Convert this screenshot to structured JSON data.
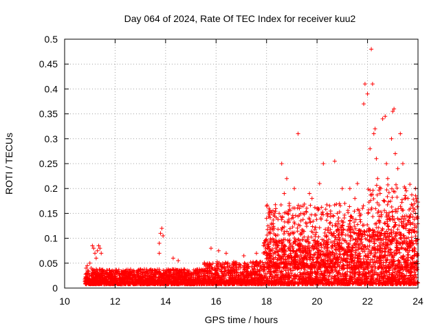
{
  "chart_data": {
    "type": "scatter",
    "title": "Day 064 of 2024, Rate Of TEC Index for receiver kuu2",
    "xlabel": "GPS time / hours",
    "ylabel": "ROTI / TECUs",
    "xlim": [
      10,
      24
    ],
    "ylim": [
      0,
      0.5
    ],
    "x_ticks": [
      "10",
      "12",
      "14",
      "16",
      "18",
      "20",
      "22",
      "24"
    ],
    "y_ticks": [
      "0",
      "0.05",
      "0.1",
      "0.15",
      "0.2",
      "0.25",
      "0.3",
      "0.35",
      "0.4",
      "0.45",
      "0.5"
    ],
    "x_tick_values": [
      10,
      12,
      14,
      16,
      18,
      20,
      22,
      24
    ],
    "y_tick_values": [
      0,
      0.05,
      0.1,
      0.15,
      0.2,
      0.25,
      0.3,
      0.35,
      0.4,
      0.45,
      0.5
    ],
    "grid": true,
    "marker": "plus",
    "color": "#ff0000",
    "series": [
      {
        "points": [
          [
            10.85,
            0.04
          ],
          [
            10.9,
            0.045
          ],
          [
            10.95,
            0.03
          ],
          [
            11.0,
            0.05
          ],
          [
            11.05,
            0.04
          ],
          [
            11.1,
            0.085
          ],
          [
            11.15,
            0.08
          ],
          [
            11.2,
            0.07
          ],
          [
            11.25,
            0.06
          ],
          [
            11.3,
            0.075
          ],
          [
            11.35,
            0.085
          ],
          [
            11.4,
            0.08
          ],
          [
            11.45,
            0.07
          ],
          [
            13.75,
            0.09
          ],
          [
            13.8,
            0.11
          ],
          [
            13.85,
            0.12
          ],
          [
            13.9,
            0.105
          ],
          [
            13.75,
            0.07
          ],
          [
            14.3,
            0.06
          ],
          [
            14.5,
            0.055
          ],
          [
            15.8,
            0.08
          ],
          [
            16.1,
            0.075
          ],
          [
            16.4,
            0.07
          ],
          [
            17.1,
            0.065
          ],
          [
            17.6,
            0.07
          ],
          [
            17.9,
            0.09
          ],
          [
            18.0,
            0.14
          ],
          [
            18.1,
            0.16
          ],
          [
            18.2,
            0.13
          ],
          [
            18.3,
            0.12
          ],
          [
            18.5,
            0.15
          ],
          [
            18.6,
            0.25
          ],
          [
            18.7,
            0.19
          ],
          [
            18.8,
            0.22
          ],
          [
            18.9,
            0.17
          ],
          [
            19.0,
            0.14
          ],
          [
            19.1,
            0.2
          ],
          [
            19.25,
            0.31
          ],
          [
            19.3,
            0.16
          ],
          [
            19.45,
            0.15
          ],
          [
            19.6,
            0.13
          ],
          [
            19.7,
            0.19
          ],
          [
            19.8,
            0.18
          ],
          [
            20.0,
            0.16
          ],
          [
            20.1,
            0.21
          ],
          [
            20.25,
            0.25
          ],
          [
            20.4,
            0.15
          ],
          [
            20.5,
            0.13
          ],
          [
            20.7,
            0.255
          ],
          [
            20.8,
            0.15
          ],
          [
            21.0,
            0.2
          ],
          [
            21.1,
            0.17
          ],
          [
            21.3,
            0.2
          ],
          [
            21.5,
            0.18
          ],
          [
            21.6,
            0.21
          ],
          [
            21.8,
            0.16
          ],
          [
            21.85,
            0.37
          ],
          [
            21.9,
            0.41
          ],
          [
            22.0,
            0.39
          ],
          [
            22.1,
            0.28
          ],
          [
            22.15,
            0.48
          ],
          [
            22.2,
            0.41
          ],
          [
            22.25,
            0.31
          ],
          [
            22.3,
            0.32
          ],
          [
            22.35,
            0.26
          ],
          [
            22.4,
            0.22
          ],
          [
            22.5,
            0.19
          ],
          [
            22.6,
            0.34
          ],
          [
            22.7,
            0.345
          ],
          [
            22.75,
            0.25
          ],
          [
            22.8,
            0.22
          ],
          [
            22.95,
            0.3
          ],
          [
            23.0,
            0.355
          ],
          [
            23.05,
            0.36
          ],
          [
            23.1,
            0.27
          ],
          [
            23.2,
            0.24
          ],
          [
            23.3,
            0.31
          ],
          [
            23.4,
            0.25
          ],
          [
            23.5,
            0.2
          ],
          [
            23.6,
            0.18
          ],
          [
            23.7,
            0.16
          ],
          [
            23.8,
            0.13
          ],
          [
            23.9,
            0.15
          ],
          [
            23.95,
            0.18
          ],
          [
            23.98,
            0.14
          ],
          [
            23.9,
            0.2
          ]
        ]
      }
    ]
  }
}
